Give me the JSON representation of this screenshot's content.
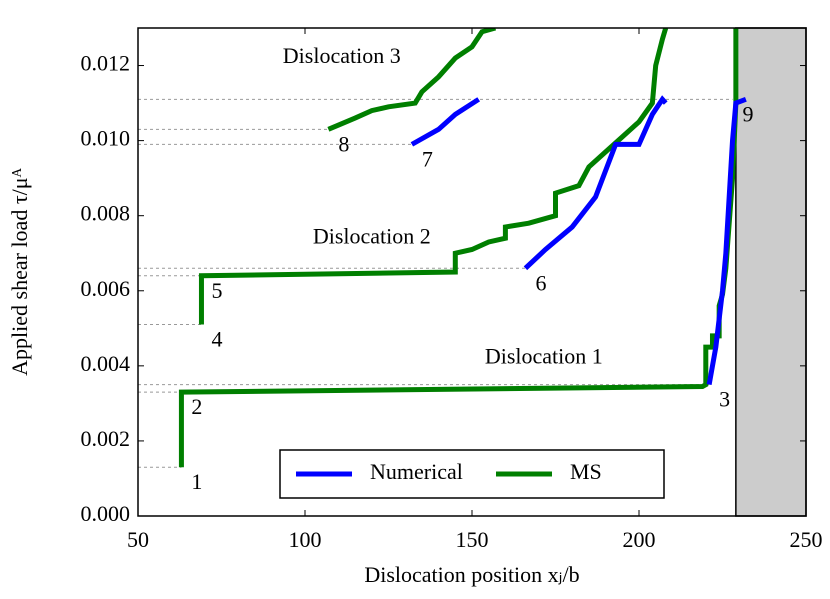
{
  "chart_data": {
    "type": "line",
    "xlabel": "Dislocation position xⱼ/b",
    "ylabel": "Applied shear load τ/μᴬ",
    "xlim": [
      50,
      250
    ],
    "ylim": [
      0,
      0.013
    ],
    "xticks": [
      50,
      100,
      150,
      200,
      250
    ],
    "yticks": [
      {
        "value": 0,
        "label": "0.000"
      },
      {
        "value": 0.002,
        "label": "0.002"
      },
      {
        "value": 0.004,
        "label": "0.004"
      },
      {
        "value": 0.006,
        "label": "0.006"
      },
      {
        "value": 0.008,
        "label": "0.008"
      },
      {
        "value": 0.01,
        "label": "0.010"
      },
      {
        "value": 0.012,
        "label": "0.012"
      }
    ],
    "legend": "lower center",
    "shade_x": [
      229,
      250
    ],
    "shade_color": "#cccccc",
    "series": [
      {
        "name": "Numerical",
        "color": "#0000ff",
        "x": [
          221,
          223,
          225,
          226,
          227,
          228,
          229,
          232,
          null,
          166,
          172,
          180,
          187,
          193,
          200,
          204,
          207,
          208,
          null,
          132,
          140,
          145,
          152
        ],
        "values": [
          0.0035,
          0.0045,
          0.006,
          0.007,
          0.0085,
          0.01,
          0.011,
          0.0111,
          null,
          0.0066,
          0.0071,
          0.0077,
          0.0085,
          0.0099,
          0.0099,
          0.0107,
          0.0111,
          0.011,
          null,
          0.0099,
          0.0103,
          0.0107,
          0.0111
        ]
      },
      {
        "name": "MS",
        "color": "#007f00",
        "x": [
          63,
          63,
          219,
          220,
          220,
          222,
          222,
          224,
          224,
          225,
          226,
          227,
          228,
          229,
          229,
          null,
          69,
          69,
          145,
          145,
          150,
          155,
          160,
          160,
          167,
          175,
          175,
          182,
          185,
          190,
          195,
          200,
          204,
          205,
          207,
          208,
          null,
          107,
          115,
          120,
          125,
          133,
          135,
          140,
          145,
          150,
          153,
          157
        ],
        "values": [
          0.0013,
          0.0033,
          0.00345,
          0.0035,
          0.0045,
          0.0045,
          0.0048,
          0.0048,
          0.0056,
          0.0059,
          0.0066,
          0.0078,
          0.009,
          0.011,
          0.013,
          null,
          0.0051,
          0.0064,
          0.0065,
          0.007,
          0.0071,
          0.0073,
          0.0074,
          0.0077,
          0.0078,
          0.008,
          0.0086,
          0.0088,
          0.0093,
          0.0097,
          0.0101,
          0.0105,
          0.011,
          0.012,
          0.0127,
          0.013,
          null,
          0.0103,
          0.0106,
          0.0108,
          0.0109,
          0.011,
          0.0113,
          0.0117,
          0.0122,
          0.0125,
          0.0129,
          0.013
        ]
      }
    ],
    "annotations": [
      {
        "text": "1",
        "x": 63,
        "y": 0.0013
      },
      {
        "text": "2",
        "x": 63,
        "y": 0.0033
      },
      {
        "text": "3",
        "x": 221,
        "y": 0.0035
      },
      {
        "text": "4",
        "x": 69,
        "y": 0.0051
      },
      {
        "text": "5",
        "x": 69,
        "y": 0.0064
      },
      {
        "text": "6",
        "x": 166,
        "y": 0.0066
      },
      {
        "text": "7",
        "x": 132,
        "y": 0.0099
      },
      {
        "text": "8",
        "x": 107,
        "y": 0.0103
      },
      {
        "text": "9",
        "x": 228,
        "y": 0.0111
      }
    ],
    "labels": [
      {
        "text": "Dislocation 1",
        "x": 171.5,
        "y": 0.0042
      },
      {
        "text": "Dislocation 2",
        "x": 120,
        "y": 0.0074
      },
      {
        "text": "Dislocation 3",
        "x": 111,
        "y": 0.0122
      }
    ]
  }
}
